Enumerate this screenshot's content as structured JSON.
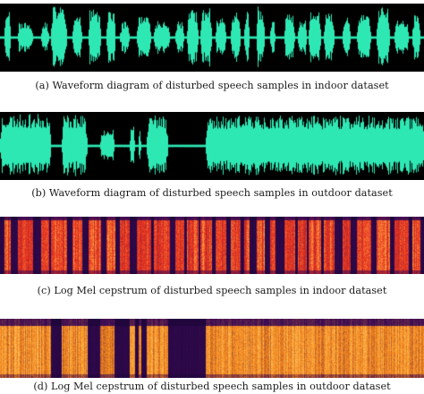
{
  "figure": {
    "panels": [
      {
        "id": "a",
        "kind": "waveform",
        "caption": "(a)  Waveform diagram of disturbed speech samples in indoor dataset",
        "colors": {
          "background": "#000000",
          "signal": "#2ee8b4"
        }
      },
      {
        "id": "b",
        "kind": "waveform",
        "caption": "(b)  Waveform diagram of disturbed speech samples in outdoor dataset",
        "colors": {
          "background": "#000000",
          "signal": "#2ee8b4"
        }
      },
      {
        "id": "c",
        "kind": "spectrogram",
        "caption": "(c)  Log Mel cepstrum of disturbed speech samples in indoor dataset",
        "colors": {
          "background": "#1a0536",
          "low": "#3b0b56",
          "mid": "#e8331f",
          "high": "#ffb347"
        }
      },
      {
        "id": "d",
        "kind": "spectrogram",
        "caption": "(d)  Log Mel cepstrum of disturbed speech samples in outdoor dataset",
        "colors": {
          "background": "#1a0536",
          "low": "#3b0b56",
          "mid": "#f0821c",
          "high": "#ffc45a"
        }
      }
    ]
  }
}
